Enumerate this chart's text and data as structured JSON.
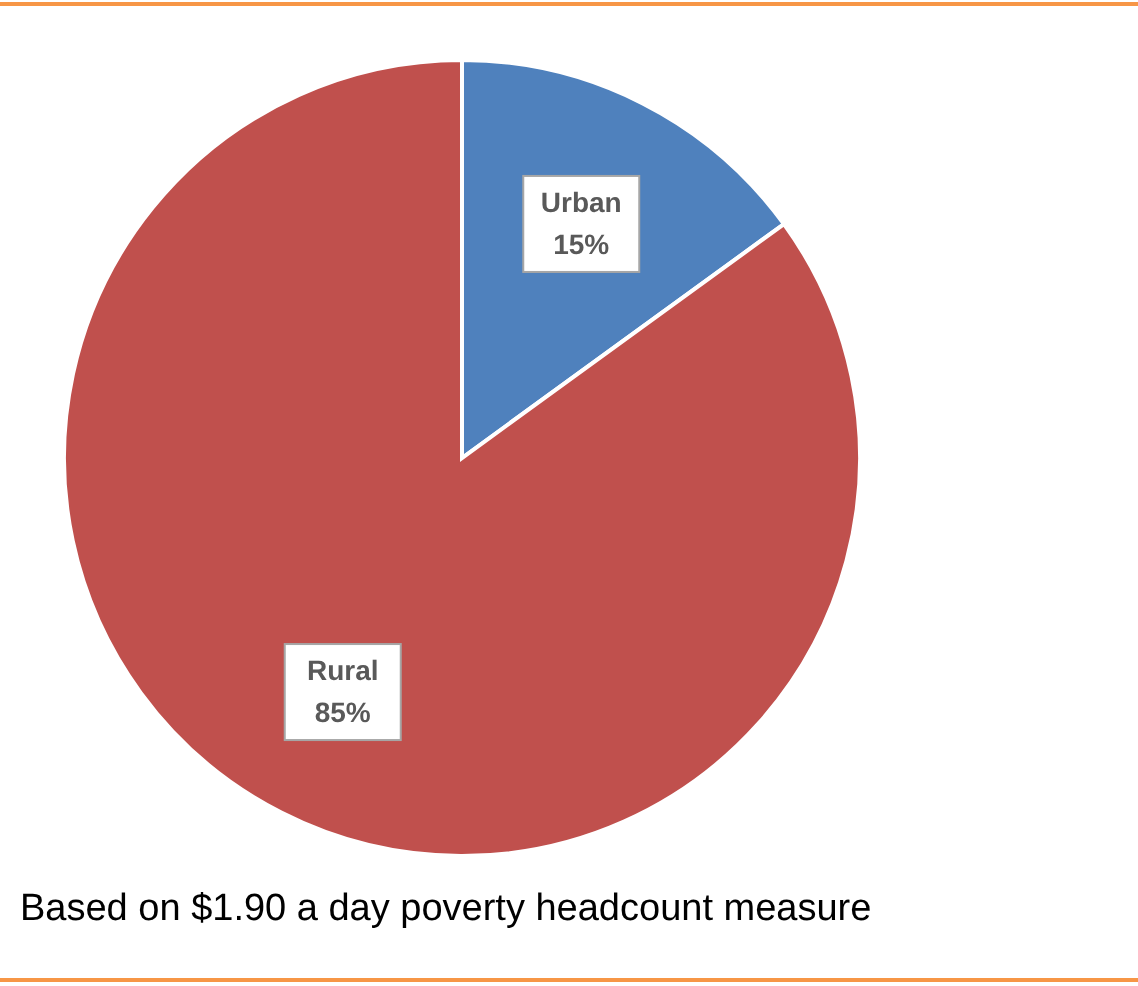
{
  "chart_data": {
    "type": "pie",
    "categories": [
      "Urban",
      "Rural"
    ],
    "values": [
      15,
      85
    ],
    "colors": [
      "#4f81bd",
      "#c0504d"
    ],
    "value_labels": [
      "15%",
      "85%"
    ],
    "annotations": [
      "Based on $1.90 a day poverty headcount measure"
    ]
  }
}
